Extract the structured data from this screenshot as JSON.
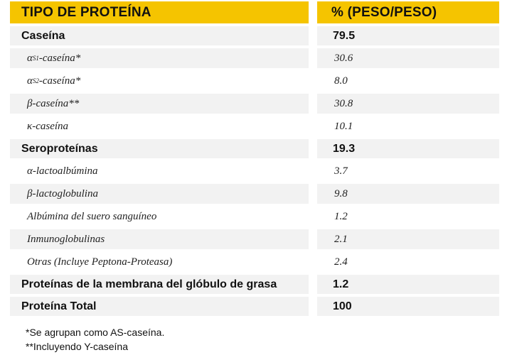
{
  "header": {
    "col1": "TIPO DE PROTEÍNA",
    "col2": "% (PESO/PESO)"
  },
  "rows": [
    {
      "type": "cat",
      "label": "Caseína",
      "value": "79.5"
    },
    {
      "type": "sub",
      "grey": true,
      "label_main": "α",
      "label_sub": "S1",
      "label_rest": "-caseína*",
      "value": "30.6"
    },
    {
      "type": "sub",
      "grey": false,
      "label_main": "α",
      "label_sub": "S2",
      "label_rest": "-caseína*",
      "value": "8.0"
    },
    {
      "type": "sub",
      "grey": true,
      "label_main": "β-caseína**",
      "value": "30.8"
    },
    {
      "type": "sub",
      "grey": false,
      "label_main": "κ-caseína",
      "value": "10.1"
    },
    {
      "type": "cat",
      "label": "Seroproteínas",
      "value": "19.3"
    },
    {
      "type": "sub",
      "grey": false,
      "label_main": "α-lactoalbúmina",
      "value": "3.7"
    },
    {
      "type": "sub",
      "grey": true,
      "label_main": "β-lactoglobulina",
      "value": "9.8"
    },
    {
      "type": "sub",
      "grey": false,
      "label_main": "Albúmina del suero sanguíneo",
      "value": "1.2"
    },
    {
      "type": "sub",
      "grey": true,
      "label_main": "Inmunoglobulinas",
      "value": "2.1"
    },
    {
      "type": "sub",
      "grey": false,
      "label_main": "Otras (Incluye Peptona-Proteasa)",
      "value": "2.4"
    },
    {
      "type": "cat",
      "label": "Proteínas de la membrana del glóbulo de grasa",
      "value": "1.2"
    },
    {
      "type": "cat",
      "label": "Proteína Total",
      "value": "100"
    }
  ],
  "notes": [
    "*Se agrupan como AS-caseína.",
    "**Incluyendo Y-caseína"
  ]
}
